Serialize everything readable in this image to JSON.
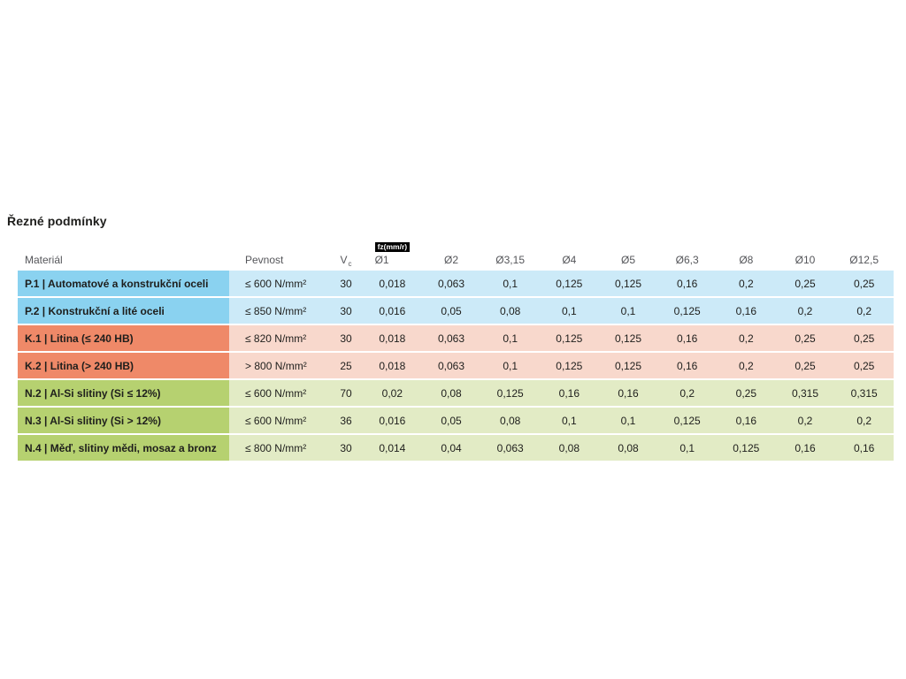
{
  "page": {
    "title": "Řezné podmínky",
    "background": "#ffffff"
  },
  "table": {
    "column_headers": {
      "material": "Materiál",
      "strength": "Pevnost",
      "vc_label": "V",
      "vc_subscript": "c",
      "fz_badge": "fz(mm/r)",
      "diameters": [
        "Ø1",
        "Ø2",
        "Ø3,15",
        "Ø4",
        "Ø5",
        "Ø6,3",
        "Ø8",
        "Ø10",
        "Ø12,5"
      ]
    },
    "text_colors": {
      "header": "#55565a",
      "body": "#1e1e1c",
      "badge_bg": "#000000",
      "badge_fg": "#ffffff"
    },
    "group_colors": {
      "P": {
        "dark": "#8ad2f0",
        "light": "#cceaf8"
      },
      "K": {
        "dark": "#ef8968",
        "light": "#f8d8cc"
      },
      "N": {
        "dark": "#b6d170",
        "light": "#e2ebc5"
      }
    },
    "rows": [
      {
        "group": "P",
        "material": "P.1 | Automatové a konstrukční oceli",
        "strength": "≤ 600 N/mm²",
        "vc": "30",
        "values": [
          "0,018",
          "0,063",
          "0,1",
          "0,125",
          "0,125",
          "0,16",
          "0,2",
          "0,25",
          "0,25"
        ]
      },
      {
        "group": "P",
        "material": "P.2 | Konstrukční a lité oceli",
        "strength": "≤ 850 N/mm²",
        "vc": "30",
        "values": [
          "0,016",
          "0,05",
          "0,08",
          "0,1",
          "0,1",
          "0,125",
          "0,16",
          "0,2",
          "0,2"
        ]
      },
      {
        "group": "K",
        "material": "K.1 | Litina (≤ 240 HB)",
        "strength": "≤ 820 N/mm²",
        "vc": "30",
        "values": [
          "0,018",
          "0,063",
          "0,1",
          "0,125",
          "0,125",
          "0,16",
          "0,2",
          "0,25",
          "0,25"
        ]
      },
      {
        "group": "K",
        "material": "K.2 | Litina (> 240 HB)",
        "strength": "> 800 N/mm²",
        "vc": "25",
        "values": [
          "0,018",
          "0,063",
          "0,1",
          "0,125",
          "0,125",
          "0,16",
          "0,2",
          "0,25",
          "0,25"
        ]
      },
      {
        "group": "N",
        "material": "N.2 | Al-Si slitiny (Si ≤ 12%)",
        "strength": "≤ 600 N/mm²",
        "vc": "70",
        "values": [
          "0,02",
          "0,08",
          "0,125",
          "0,16",
          "0,16",
          "0,2",
          "0,25",
          "0,315",
          "0,315"
        ]
      },
      {
        "group": "N",
        "material": "N.3 | Al-Si slitiny (Si > 12%)",
        "strength": "≤ 600 N/mm²",
        "vc": "36",
        "values": [
          "0,016",
          "0,05",
          "0,08",
          "0,1",
          "0,1",
          "0,125",
          "0,16",
          "0,2",
          "0,2"
        ]
      },
      {
        "group": "N",
        "material": "N.4 | Měď, slitiny mědi, mosaz a bronz",
        "strength": "≤ 800 N/mm²",
        "vc": "30",
        "values": [
          "0,014",
          "0,04",
          "0,063",
          "0,08",
          "0,08",
          "0,1",
          "0,125",
          "0,16",
          "0,16"
        ]
      }
    ]
  }
}
